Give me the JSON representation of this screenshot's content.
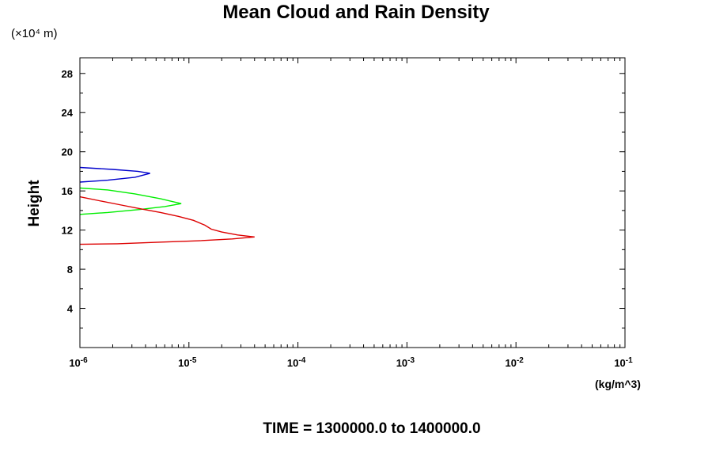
{
  "chart_data": {
    "type": "line",
    "title": "Mean Cloud and Rain Density",
    "ylabel": "Height",
    "y_scale_label": "(×10⁴ m)",
    "xlabel": "(kg/m^3)",
    "footer": "TIME = 1300000.0 to 1400000.0",
    "xscale": "log",
    "xlim": [
      1e-06,
      0.1
    ],
    "ylim": [
      0,
      29.6
    ],
    "x_ticks": [
      {
        "value": 1e-06,
        "base": "10",
        "exp": "-6"
      },
      {
        "value": 1e-05,
        "base": "10",
        "exp": "-5"
      },
      {
        "value": 0.0001,
        "base": "10",
        "exp": "-4"
      },
      {
        "value": 0.001,
        "base": "10",
        "exp": "-3"
      },
      {
        "value": 0.01,
        "base": "10",
        "exp": "-2"
      },
      {
        "value": 0.1,
        "base": "10",
        "exp": "-1"
      }
    ],
    "y_ticks": [
      "4",
      "8",
      "12",
      "16",
      "20",
      "24",
      "28"
    ],
    "grid": false,
    "series": [
      {
        "color": "#0000cc",
        "points": [
          [
            1e-06,
            18.4
          ],
          [
            2e-06,
            18.2
          ],
          [
            3.4e-06,
            18.0
          ],
          [
            4.4e-06,
            17.8
          ],
          [
            3.2e-06,
            17.4
          ],
          [
            1.8e-06,
            17.1
          ],
          [
            1e-06,
            16.9
          ]
        ]
      },
      {
        "color": "#00ee00",
        "points": [
          [
            1e-06,
            16.3
          ],
          [
            1.8e-06,
            16.1
          ],
          [
            3.2e-06,
            15.7
          ],
          [
            5.5e-06,
            15.2
          ],
          [
            8.5e-06,
            14.7
          ],
          [
            6e-06,
            14.4
          ],
          [
            3.5e-06,
            14.1
          ],
          [
            1.8e-06,
            13.8
          ],
          [
            1e-06,
            13.6
          ]
        ]
      },
      {
        "color": "#dd0000",
        "points": [
          [
            1e-06,
            15.4
          ],
          [
            1.5e-06,
            15.0
          ],
          [
            2.3e-06,
            14.6
          ],
          [
            3.5e-06,
            14.2
          ],
          [
            5.5e-06,
            13.8
          ],
          [
            8e-06,
            13.4
          ],
          [
            1.1e-05,
            13.0
          ],
          [
            1.4e-05,
            12.5
          ],
          [
            1.6e-05,
            12.1
          ],
          [
            2e-05,
            11.8
          ],
          [
            2.8e-05,
            11.5
          ],
          [
            4e-05,
            11.3
          ],
          [
            2.5e-05,
            11.1
          ],
          [
            1.2e-05,
            10.9
          ],
          [
            5e-06,
            10.75
          ],
          [
            2.2e-06,
            10.6
          ],
          [
            1e-06,
            10.55
          ]
        ]
      }
    ]
  }
}
